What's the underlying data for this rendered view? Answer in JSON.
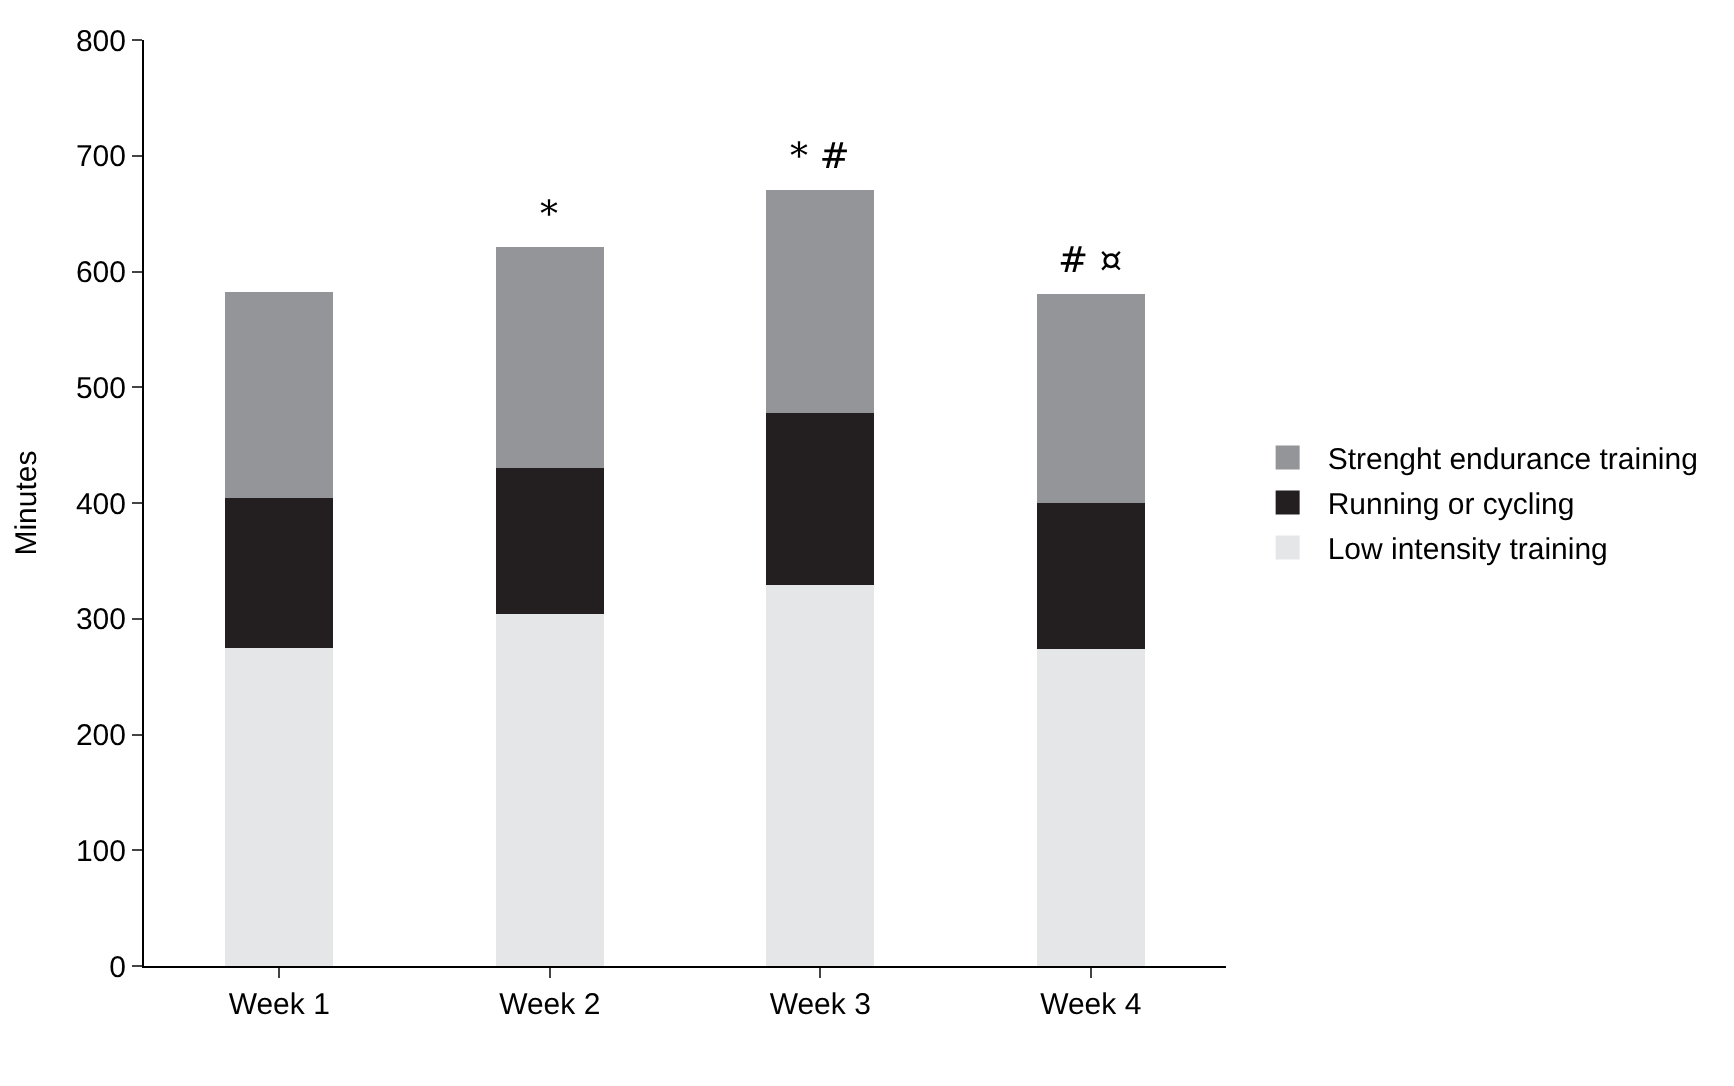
{
  "chart_data": {
    "type": "bar",
    "stacked": true,
    "ylabel": "Minutes",
    "categories": [
      "Week 1",
      "Week 2",
      "Week 3",
      "Week 4"
    ],
    "series": [
      {
        "name": "Low intensity training",
        "color": "#e5e6e8",
        "values": [
          275,
          304,
          329,
          274
        ]
      },
      {
        "name": "Running or cycling",
        "color": "#231f20",
        "values": [
          129,
          126,
          149,
          126
        ]
      },
      {
        "name": "Strenght endurance training",
        "color": "#939598",
        "values": [
          178,
          191,
          192,
          181
        ]
      }
    ],
    "ylim": [
      0,
      800
    ],
    "yticks": [
      0,
      100,
      200,
      300,
      400,
      500,
      600,
      700,
      800
    ],
    "annotations": [
      {
        "text": "*",
        "x": "Week 2",
        "y": 621
      },
      {
        "text": "* #",
        "x": "Week 3",
        "y": 670
      },
      {
        "text": "# ¤",
        "x": "Week 4",
        "y": 581
      }
    ],
    "legend": "right"
  }
}
